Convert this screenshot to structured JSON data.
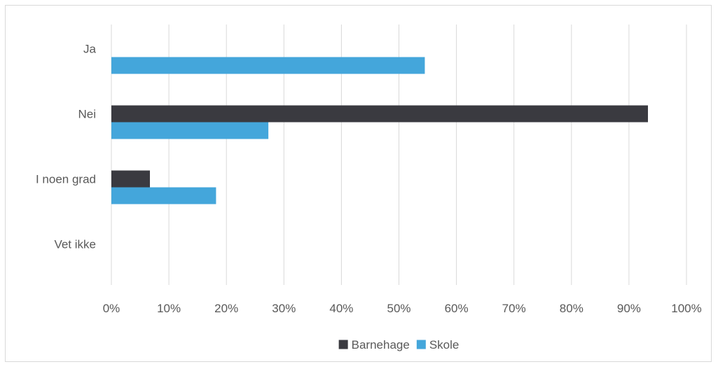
{
  "chart_data": {
    "type": "bar",
    "orientation": "horizontal",
    "categories": [
      "Ja",
      "Nei",
      "I noen grad",
      "Vet ikke"
    ],
    "series": [
      {
        "name": "Barnehage",
        "color": "#3a3a40",
        "values": [
          0,
          93.3,
          6.7,
          0
        ]
      },
      {
        "name": "Skole",
        "color": "#44a6db",
        "values": [
          54.5,
          27.3,
          18.2,
          0
        ]
      }
    ],
    "x_ticks": [
      "0%",
      "10%",
      "20%",
      "30%",
      "40%",
      "50%",
      "60%",
      "70%",
      "80%",
      "90%",
      "100%"
    ],
    "xlim": [
      0,
      100
    ],
    "grid": "vertical",
    "legend": "bottom-center",
    "title": "",
    "xlabel": "",
    "ylabel": ""
  }
}
